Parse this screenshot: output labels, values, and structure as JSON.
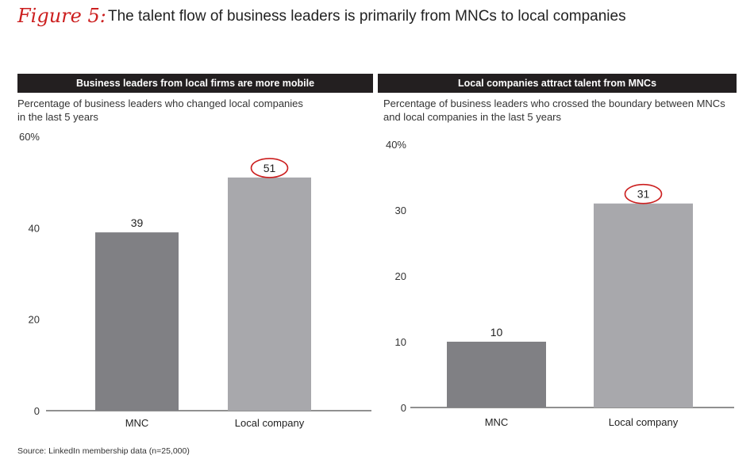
{
  "header": {
    "figure_label": "Figure 5:",
    "title": "The talent flow of business leaders is primarily from MNCs to local companies"
  },
  "colors": {
    "mnc": "#808084",
    "local": "#a8a8ac",
    "accent": "#cc1f1f",
    "header_bg": "#231f20"
  },
  "chart_data": [
    {
      "type": "bar",
      "title": "Business leaders from local firms are more mobile",
      "subtitle_line1": "Percentage of business leaders who changed local companies",
      "subtitle_line2": "in the last 5 years",
      "categories": [
        "MNC",
        "Local company"
      ],
      "values": [
        39,
        51
      ],
      "value_labels": [
        "39",
        "51"
      ],
      "highlight_index": 1,
      "ylim": [
        0,
        60
      ],
      "ticks": [
        0,
        20,
        40,
        60
      ],
      "tick_labels": [
        "0",
        "20",
        "40",
        "60%"
      ]
    },
    {
      "type": "bar",
      "title": "Local companies attract talent from MNCs",
      "subtitle_line1": "Percentage of business leaders who crossed the boundary between MNCs",
      "subtitle_line2": "and local companies in the last 5 years",
      "categories": [
        "MNC",
        "Local company"
      ],
      "values": [
        10,
        31
      ],
      "value_labels": [
        "10",
        "31"
      ],
      "highlight_index": 1,
      "ylim": [
        0,
        40
      ],
      "ticks": [
        0,
        10,
        20,
        30,
        40
      ],
      "tick_labels": [
        "0",
        "10",
        "20",
        "30",
        "40%"
      ]
    }
  ],
  "footer": {
    "source": "Source: LinkedIn membership data (n=25,000)"
  }
}
